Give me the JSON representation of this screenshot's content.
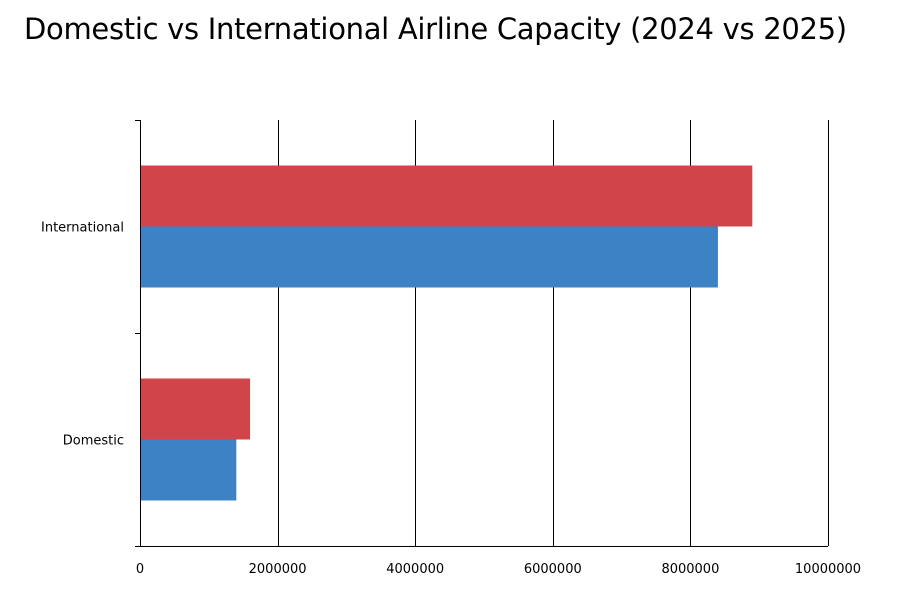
{
  "chart_data": {
    "type": "bar",
    "orientation": "horizontal",
    "title": "Domestic vs International Airline Capacity (2024 vs 2025)",
    "xlabel": "",
    "ylabel": "",
    "categories": [
      "Domestic",
      "International"
    ],
    "series": [
      {
        "values": [
          1400000,
          8400000
        ],
        "color": "#3d82c4"
      },
      {
        "values": [
          1600000,
          8900000
        ],
        "color": "#d1454a"
      }
    ],
    "xlim": [
      0,
      10000000
    ],
    "x_ticks": [
      0,
      2000000,
      4000000,
      6000000,
      8000000,
      10000000
    ],
    "x_tick_labels": [
      "0",
      "2000000",
      "4000000",
      "6000000",
      "8000000",
      "10000000"
    ],
    "grid": "vertical",
    "legend": "none"
  }
}
